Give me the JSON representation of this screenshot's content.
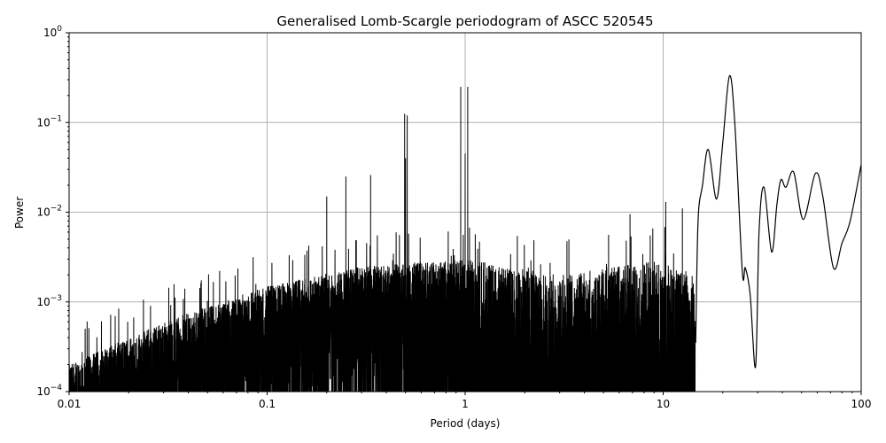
{
  "chart_data": {
    "type": "line",
    "title": "Generalised Lomb-Scargle periodogram of ASCC 520545",
    "xlabel": "Period (days)",
    "ylabel": "Power",
    "xscale": "log",
    "yscale": "log",
    "xlim": [
      0.01,
      100
    ],
    "ylim": [
      0.0001,
      1
    ],
    "grid": true,
    "x_ticks": [
      {
        "v": 0.01,
        "label": "0.01"
      },
      {
        "v": 0.1,
        "label": "0.1"
      },
      {
        "v": 1,
        "label": "1"
      },
      {
        "v": 10,
        "label": "10"
      },
      {
        "v": 100,
        "label": "100"
      }
    ],
    "y_ticks": [
      {
        "v": 0.0001,
        "base": "10",
        "exp": "−4"
      },
      {
        "v": 0.001,
        "base": "10",
        "exp": "−3"
      },
      {
        "v": 0.01,
        "base": "10",
        "exp": "−2"
      },
      {
        "v": 0.1,
        "base": "10",
        "exp": "−1"
      },
      {
        "v": 1,
        "base": "10",
        "exp": "0"
      }
    ],
    "noise_envelope": [
      [
        0.01,
        0.0002
      ],
      [
        0.03,
        0.0006
      ],
      [
        0.1,
        0.0015
      ],
      [
        0.3,
        0.0025
      ],
      [
        1,
        0.003
      ],
      [
        3,
        0.002
      ],
      [
        10,
        0.003
      ],
      [
        14,
        0.002
      ]
    ],
    "peaks": [
      [
        0.2,
        0.015
      ],
      [
        0.25,
        0.025
      ],
      [
        0.333,
        0.026
      ],
      [
        0.495,
        0.125
      ],
      [
        0.51,
        0.12
      ],
      [
        0.5,
        0.04
      ],
      [
        0.95,
        0.25
      ],
      [
        1.03,
        0.25
      ],
      [
        1.0,
        0.045
      ],
      [
        5.3,
        0.0056
      ],
      [
        6.8,
        0.0095
      ],
      [
        8.6,
        0.0055
      ],
      [
        10.3,
        0.013
      ],
      [
        12.5,
        0.011
      ],
      [
        14.2,
        0.0016
      ]
    ],
    "smooth_series": [
      [
        14.6,
        0.00035
      ],
      [
        15.0,
        0.008
      ],
      [
        15.8,
        0.02
      ],
      [
        16.9,
        0.05
      ],
      [
        18.6,
        0.014
      ],
      [
        20.0,
        0.06
      ],
      [
        21.6,
        0.33
      ],
      [
        23.0,
        0.1
      ],
      [
        25.1,
        0.0022
      ],
      [
        26.0,
        0.0024
      ],
      [
        27.5,
        0.0012
      ],
      [
        29.3,
        0.00019
      ],
      [
        30.5,
        0.006
      ],
      [
        32.3,
        0.019
      ],
      [
        35.3,
        0.0036
      ],
      [
        37.5,
        0.012
      ],
      [
        39.3,
        0.023
      ],
      [
        41.7,
        0.019
      ],
      [
        45.6,
        0.028
      ],
      [
        51.0,
        0.0083
      ],
      [
        58.7,
        0.027
      ],
      [
        64,
        0.015
      ],
      [
        72.4,
        0.0024
      ],
      [
        80,
        0.0045
      ],
      [
        88,
        0.008
      ],
      [
        100,
        0.034
      ]
    ]
  }
}
